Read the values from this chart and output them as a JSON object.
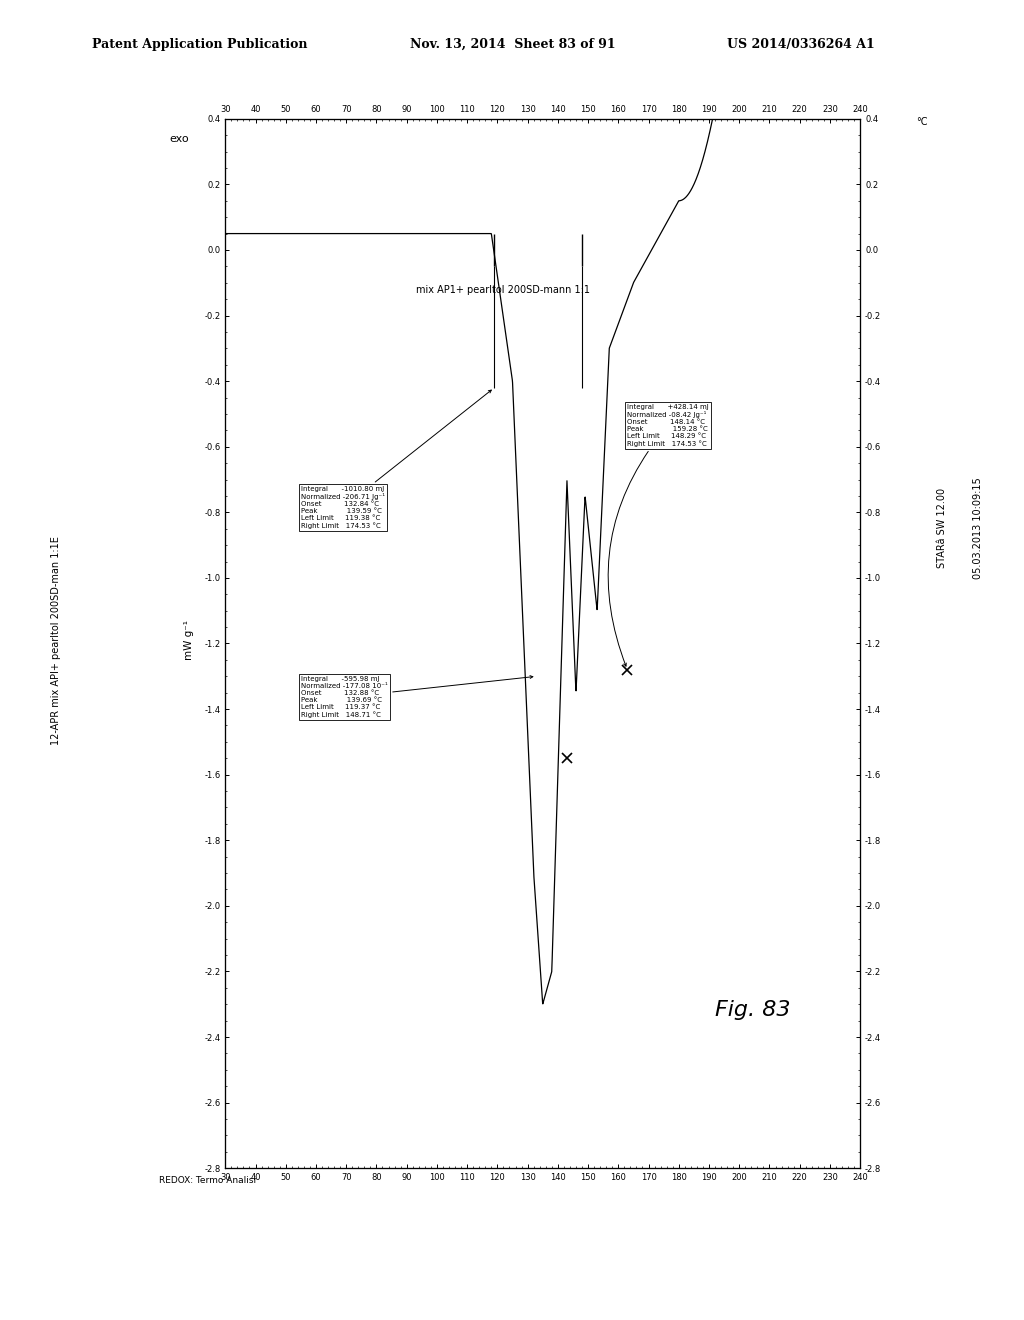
{
  "title_left": "12-APR mix API+ pearltol 200SD-man 1:1E",
  "title_right": "05.03.2013 10:09:15",
  "sample_label": "mix AP1+ pearltol 200SD-mann 1:1",
  "ylabel": "mW g⁻¹",
  "xlabel_bottom": "REDOX: Termo Analisi",
  "xlabel_right": "STARâ SW 12.00",
  "exo_label": "exo",
  "x_min": 30,
  "x_max": 240,
  "y_min": -2.8,
  "y_max": 0.4,
  "x_ticks": [
    30,
    40,
    50,
    60,
    70,
    80,
    90,
    100,
    110,
    120,
    130,
    140,
    150,
    160,
    170,
    180,
    190,
    200,
    210,
    220,
    230,
    240
  ],
  "y_ticks": [
    0.4,
    0.2,
    0.0,
    -0.2,
    -0.4,
    -0.6,
    -0.8,
    -1.0,
    -1.2,
    -1.4,
    -1.6,
    -1.8,
    -2.0,
    -2.2,
    -2.4,
    -2.6,
    -2.8
  ],
  "annotation1": "Integral      -1010.80 mJ\nNormalized -206.71 Jg⁻¹\nOnset          132.84 °C\nPeak             139.59 °C\nLeft Limit     119.38 °C\nRight Limit   174.53 °C",
  "annotation2": "Integral      -595.98 mJ\nNormalized -177.08 10⁻¹\nOnset          132.88 °C\nPeak             139.69 °C\nLeft Limit     119.37 °C\nRight Limit   148.71 °C",
  "annotation3": "Integral      +428.14 mJ\nNormalized -08.42 Jg⁻¹\nOnset          148.14 °C\nPeak             159.28 °C\nLeft Limit     148.29 °C\nRight Limit   174.53 °C",
  "fig_label": "Fig. 83",
  "background_color": "#ffffff",
  "line_color": "#000000"
}
